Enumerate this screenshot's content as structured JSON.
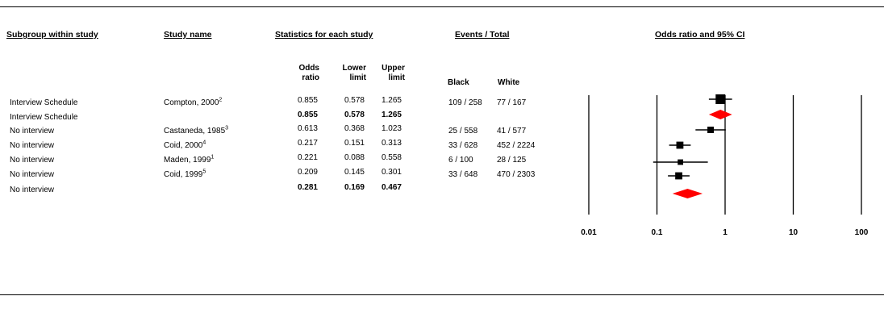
{
  "headers": {
    "subgroup": "Subgroup within study",
    "study": "Study name",
    "stats": "Statistics for each study",
    "events": "Events / Total",
    "plot": "Odds ratio and 95% CI",
    "or": [
      "Odds",
      "ratio"
    ],
    "lower": [
      "Lower",
      "limit"
    ],
    "upper": [
      "Upper",
      "limit"
    ],
    "black": "Black",
    "white": "White"
  },
  "rows": [
    {
      "subgroup": "Interview Schedule",
      "study": "Compton, 2000",
      "sup": "2",
      "or": "0.855",
      "lower": "0.578",
      "upper": "1.265",
      "black": "109 / 258",
      "white": "77 / 167",
      "bold": false
    },
    {
      "subgroup": "Interview Schedule",
      "study": "",
      "sup": "",
      "or": "0.855",
      "lower": "0.578",
      "upper": "1.265",
      "black": "",
      "white": "",
      "bold": true
    },
    {
      "subgroup": "No interview",
      "study": "Castaneda, 1985",
      "sup": "3",
      "or": "0.613",
      "lower": "0.368",
      "upper": "1.023",
      "black": "25 / 558",
      "white": "41 / 577",
      "bold": false
    },
    {
      "subgroup": "No interview",
      "study": "Coid, 2000",
      "sup": "4",
      "or": "0.217",
      "lower": "0.151",
      "upper": "0.313",
      "black": "33 / 628",
      "white": "452 / 2224",
      "bold": false
    },
    {
      "subgroup": "No interview",
      "study": "Maden, 1999",
      "sup": "1",
      "or": "0.221",
      "lower": "0.088",
      "upper": "0.558",
      "black": "6 / 100",
      "white": "28 / 125",
      "bold": false
    },
    {
      "subgroup": "No interview",
      "study": "Coid, 1999",
      "sup": "5",
      "or": "0.209",
      "lower": "0.145",
      "upper": "0.301",
      "black": "33 / 648",
      "white": "470 / 2303",
      "bold": false
    },
    {
      "subgroup": "No interview",
      "study": "",
      "sup": "",
      "or": "0.281",
      "lower": "0.169",
      "upper": "0.467",
      "black": "",
      "white": "",
      "bold": true
    }
  ],
  "chart_data": {
    "type": "forest",
    "title": "Odds ratio and 95% CI",
    "x_scale": "log",
    "xlim": [
      0.01,
      100
    ],
    "ticks": [
      "0.01",
      "0.1",
      "1",
      "10",
      "100"
    ],
    "points": [
      {
        "label": "Compton, 2000",
        "kind": "study",
        "or": 0.855,
        "lower": 0.578,
        "upper": 1.265,
        "marker_weight": 1.0
      },
      {
        "label": "Interview Schedule",
        "kind": "summary",
        "or": 0.855,
        "lower": 0.578,
        "upper": 1.265
      },
      {
        "label": "Castaneda, 1985",
        "kind": "study",
        "or": 0.613,
        "lower": 0.368,
        "upper": 1.023,
        "marker_weight": 0.5
      },
      {
        "label": "Coid, 2000",
        "kind": "study",
        "or": 0.217,
        "lower": 0.151,
        "upper": 0.313,
        "marker_weight": 0.6
      },
      {
        "label": "Maden, 1999",
        "kind": "study",
        "or": 0.221,
        "lower": 0.088,
        "upper": 0.558,
        "marker_weight": 0.35
      },
      {
        "label": "Coid, 1999",
        "kind": "study",
        "or": 0.209,
        "lower": 0.145,
        "upper": 0.301,
        "marker_weight": 0.6
      },
      {
        "label": "No interview",
        "kind": "summary",
        "or": 0.281,
        "lower": 0.169,
        "upper": 0.467
      }
    ],
    "colors": {
      "summary": "#ff0000",
      "study": "#000000"
    }
  }
}
